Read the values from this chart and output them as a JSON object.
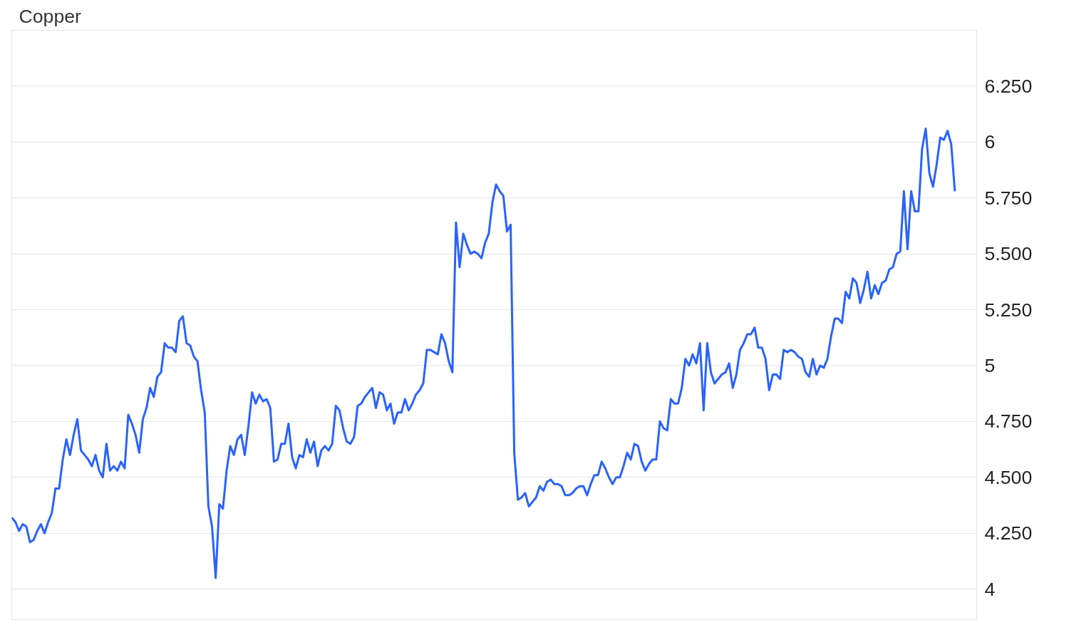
{
  "chart_data": {
    "type": "line",
    "title": "Copper",
    "categories": [
      null,
      null,
      null,
      null,
      null,
      null,
      null,
      null,
      null,
      null,
      null,
      null,
      null,
      null,
      null,
      null,
      null,
      null,
      null,
      null,
      null,
      null,
      null,
      null,
      null,
      null,
      null,
      null,
      null,
      null,
      null,
      null,
      null,
      null,
      null,
      null,
      null,
      null,
      null,
      null,
      null,
      null,
      null,
      null,
      null,
      null,
      null,
      null,
      null,
      null,
      null,
      null,
      null,
      null,
      null,
      null,
      null,
      null,
      null,
      null,
      null,
      null,
      null,
      null,
      null,
      null,
      null,
      null,
      null,
      null,
      null,
      null,
      null,
      null,
      null,
      null,
      null,
      null,
      null,
      null,
      null,
      null,
      null,
      null,
      null,
      null,
      null,
      null,
      null,
      null,
      null,
      null,
      null,
      null,
      null,
      null,
      null,
      null,
      null,
      null,
      null,
      null,
      null,
      null,
      null,
      null,
      null,
      null,
      null,
      null,
      null,
      null,
      null,
      null,
      null,
      null,
      null,
      null,
      null,
      null,
      null,
      null,
      null,
      null,
      null,
      null,
      null,
      null,
      null,
      null,
      null,
      null,
      null,
      null,
      null,
      null,
      null,
      null,
      null,
      null,
      null,
      null,
      null,
      null,
      null,
      null,
      null,
      null,
      null,
      null,
      null,
      null,
      null,
      null,
      null,
      null,
      null,
      null,
      null,
      null,
      null,
      null,
      null,
      null,
      null,
      null,
      null,
      null,
      null,
      null,
      null,
      null,
      null,
      null,
      null,
      null,
      null,
      null,
      null,
      null,
      null,
      null,
      null,
      null,
      null,
      null,
      null,
      null,
      null,
      null,
      null,
      null,
      null,
      null,
      null,
      null,
      null,
      null,
      null,
      null,
      null,
      null,
      null,
      null,
      null,
      null,
      null,
      null,
      null,
      null,
      null,
      null,
      null,
      null,
      null,
      null,
      null,
      null,
      null,
      null,
      null,
      null,
      null,
      null,
      null,
      null,
      null,
      null,
      null,
      null,
      null,
      null,
      null,
      null,
      null,
      null,
      null,
      null,
      null,
      null,
      null,
      null,
      null,
      null,
      null,
      null,
      null,
      null,
      null,
      null,
      null,
      null,
      null,
      null,
      null,
      null,
      null,
      null,
      null,
      null
    ],
    "series": [
      {
        "color": "#2962ff",
        "values": [
          4.32,
          4.3,
          4.26,
          4.29,
          4.28,
          4.21,
          4.22,
          4.26,
          4.29,
          4.25,
          4.3,
          4.34,
          4.45,
          4.45,
          4.58,
          4.67,
          4.6,
          4.69,
          4.76,
          4.62,
          4.6,
          4.58,
          4.55,
          4.6,
          4.53,
          4.5,
          4.65,
          4.53,
          4.55,
          4.53,
          4.57,
          4.54,
          4.78,
          4.74,
          4.69,
          4.61,
          4.76,
          4.81,
          4.9,
          4.86,
          4.95,
          4.97,
          5.1,
          5.08,
          5.08,
          5.06,
          5.2,
          5.22,
          5.1,
          5.09,
          5.04,
          5.02,
          4.89,
          4.79,
          4.37,
          4.28,
          4.05,
          4.38,
          4.36,
          4.53,
          4.64,
          4.6,
          4.67,
          4.69,
          4.6,
          4.73,
          4.88,
          4.83,
          4.87,
          4.84,
          4.85,
          4.81,
          4.57,
          4.58,
          4.65,
          4.65,
          4.74,
          4.59,
          4.54,
          4.6,
          4.59,
          4.67,
          4.61,
          4.66,
          4.55,
          4.62,
          4.64,
          4.62,
          4.65,
          4.82,
          4.8,
          4.72,
          4.66,
          4.65,
          4.68,
          4.82,
          4.83,
          4.86,
          4.88,
          4.9,
          4.81,
          4.88,
          4.87,
          4.8,
          4.83,
          4.74,
          4.79,
          4.79,
          4.85,
          4.8,
          4.83,
          4.87,
          4.89,
          4.92,
          5.07,
          5.07,
          5.06,
          5.05,
          5.14,
          5.1,
          5.02,
          4.97,
          5.64,
          5.44,
          5.59,
          5.54,
          5.5,
          5.51,
          5.5,
          5.48,
          5.55,
          5.59,
          5.73,
          5.81,
          5.78,
          5.76,
          5.6,
          5.63,
          4.61,
          4.4,
          4.41,
          4.43,
          4.37,
          4.39,
          4.41,
          4.46,
          4.44,
          4.48,
          4.49,
          4.47,
          4.47,
          4.46,
          4.42,
          4.42,
          4.43,
          4.45,
          4.46,
          4.46,
          4.42,
          4.47,
          4.51,
          4.51,
          4.57,
          4.54,
          4.5,
          4.47,
          4.5,
          4.5,
          4.55,
          4.61,
          4.58,
          4.65,
          4.64,
          4.57,
          4.53,
          4.56,
          4.58,
          4.58,
          4.75,
          4.72,
          4.71,
          4.85,
          4.83,
          4.83,
          4.9,
          5.03,
          5.0,
          5.05,
          5.01,
          5.1,
          4.8,
          5.1,
          4.97,
          4.92,
          4.94,
          4.96,
          4.97,
          5.01,
          4.9,
          4.96,
          5.07,
          5.1,
          5.14,
          5.14,
          5.17,
          5.08,
          5.08,
          5.03,
          4.89,
          4.96,
          4.96,
          4.94,
          5.07,
          5.06,
          5.07,
          5.06,
          5.04,
          5.03,
          4.97,
          4.95,
          5.03,
          4.96,
          5.0,
          4.99,
          5.03,
          5.13,
          5.21,
          5.21,
          5.19,
          5.33,
          5.3,
          5.39,
          5.37,
          5.28,
          5.34,
          5.42,
          5.3,
          5.36,
          5.32,
          5.37,
          5.38,
          5.43,
          5.44,
          5.5,
          5.51,
          5.78,
          5.52,
          5.78,
          5.69,
          5.69,
          5.97,
          6.06,
          5.86,
          5.8,
          5.9,
          6.02,
          6.01,
          6.05,
          5.99,
          5.78
        ]
      }
    ],
    "ylim": [
      3.86,
      6.5
    ],
    "yticks": [
      4,
      {
        "value": 4.25,
        "label": "4.250"
      },
      {
        "value": 4.5,
        "label": "4.500"
      },
      {
        "value": 4.75,
        "label": "4.750"
      },
      5,
      {
        "value": 5.25,
        "label": "5.250"
      },
      {
        "value": 5.5,
        "label": "5.500"
      },
      {
        "value": 5.75,
        "label": "5.750"
      },
      6,
      {
        "value": 6.25,
        "label": "6.250"
      }
    ],
    "grid": "y",
    "tick_labels": "y",
    "line_style": "solid"
  }
}
